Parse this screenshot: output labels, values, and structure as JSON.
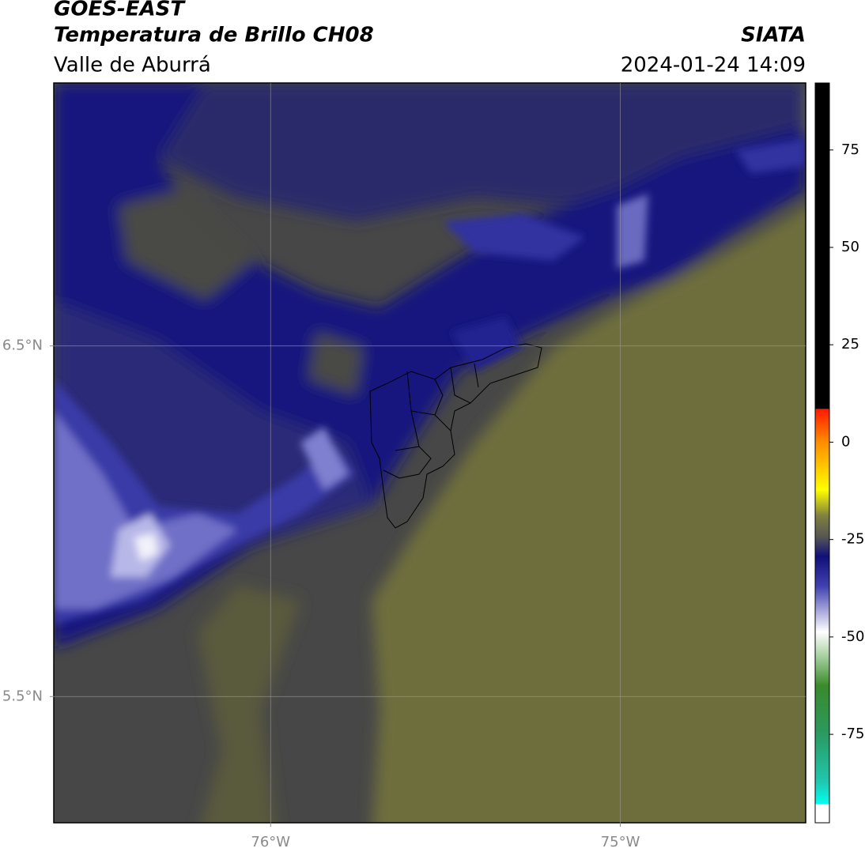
{
  "chart_data": {
    "type": "map",
    "title": "GOES-EAST",
    "subtitle": "Temperatura de Brillo CH08",
    "region": "Valle de Aburrá",
    "source": "SIATA",
    "timestamp": "2024-01-24 14:09",
    "xlim": [
      -76.62,
      -74.47
    ],
    "ylim": [
      5.14,
      7.25
    ],
    "xticks": [
      {
        "value": -76,
        "label": "76°W"
      },
      {
        "value": -75,
        "label": "75°W"
      }
    ],
    "yticks": [
      {
        "value": 6.5,
        "label": "6.5°N"
      },
      {
        "value": 5.5,
        "label": "5.5°N"
      }
    ],
    "grid": true,
    "clim": [
      -97.7,
      92.2
    ],
    "cticks": [
      75,
      50,
      25,
      0,
      -25,
      -50,
      -75
    ]
  }
}
